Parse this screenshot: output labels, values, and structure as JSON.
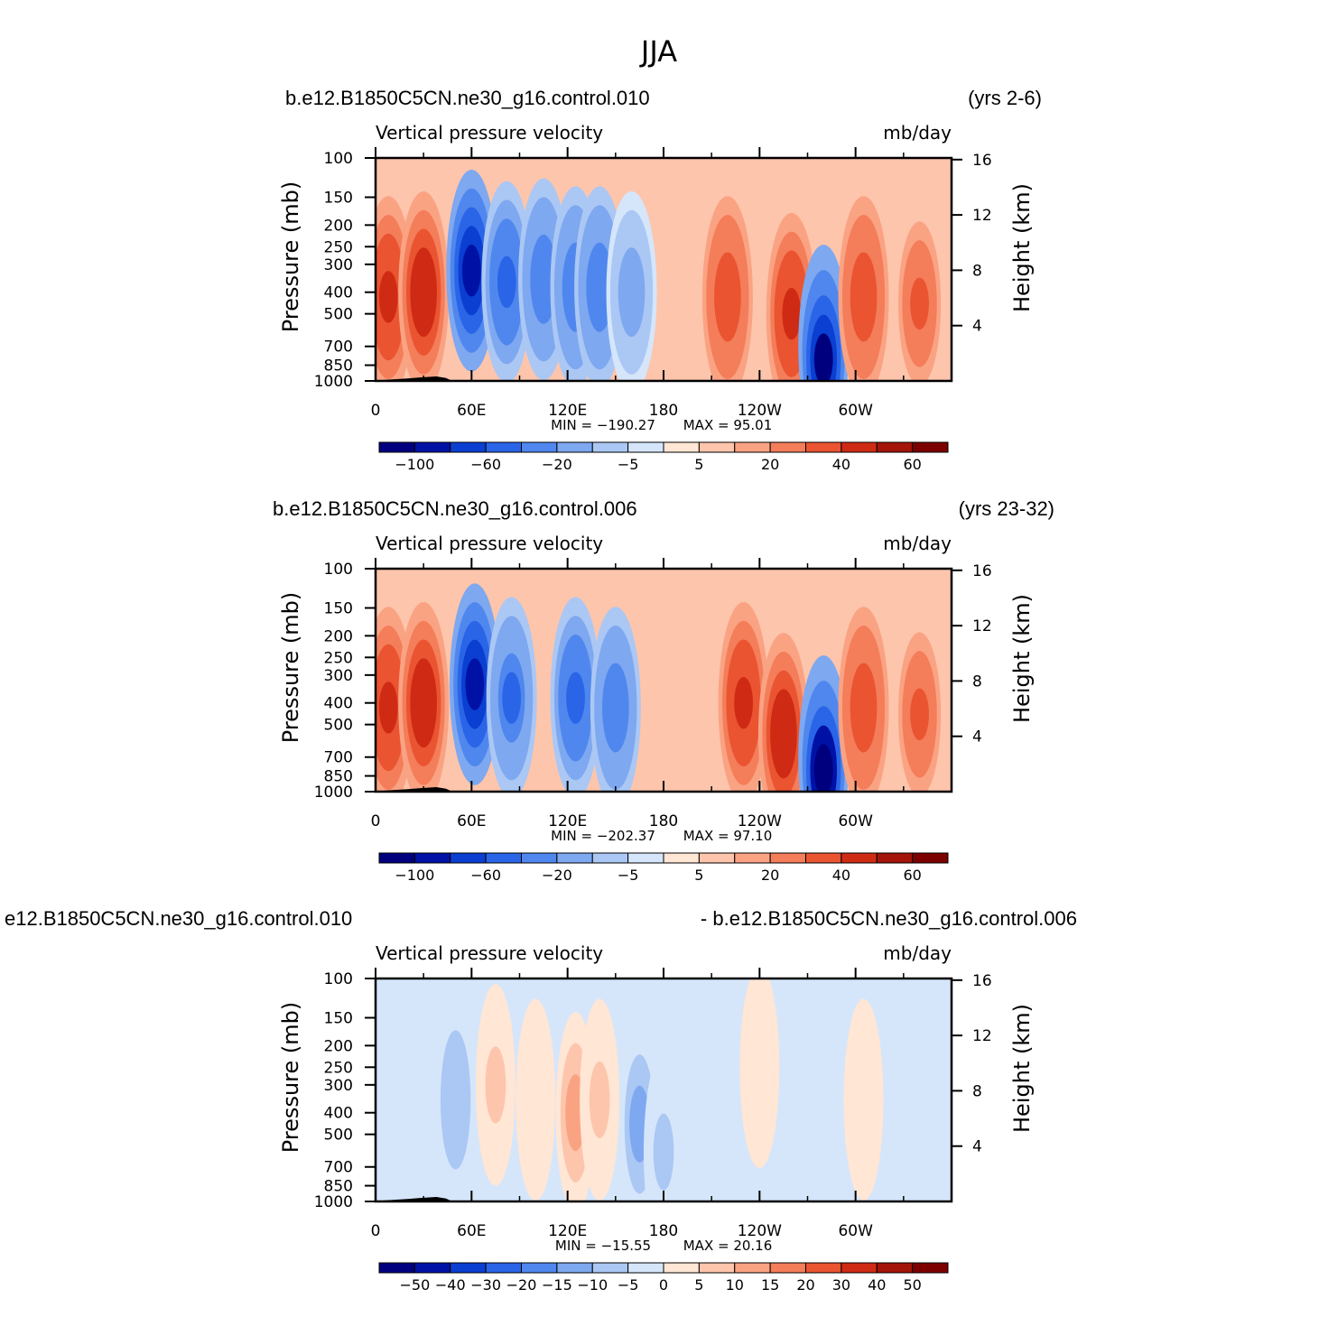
{
  "title": "JJA",
  "chart_data": [
    {
      "type": "heatmap",
      "case_left": "b.e12.B1850C5CN.ne30_g16.control.010",
      "case_right": "(yrs 2-6)",
      "subtitle_left": "Vertical pressure velocity",
      "subtitle_right": "mb/day",
      "ylabel": "Pressure (mb)",
      "y2label": "Height (km)",
      "x_ticks": [
        "0",
        "60E",
        "120E",
        "180",
        "120W",
        "60W"
      ],
      "y_ticks": [
        "100",
        "150",
        "200",
        "250",
        "300",
        "400",
        "500",
        "700",
        "850",
        "1000"
      ],
      "y2_ticks": [
        "16",
        "12",
        "8",
        "4"
      ],
      "xlim": [
        0,
        360
      ],
      "ylim": [
        1000,
        100
      ],
      "min_label": "MIN = −190.27",
      "max_label": "MAX = 95.01",
      "min": -190.27,
      "max": 95.01,
      "colorbar_labels": [
        "−100",
        "−60",
        "−20",
        "−5",
        "5",
        "20",
        "40",
        "60"
      ],
      "features": [
        {
          "lon": 8,
          "p": 420,
          "value": 35
        },
        {
          "lon": 30,
          "p": 400,
          "value": 40
        },
        {
          "lon": 60,
          "p": 320,
          "value": -110
        },
        {
          "lon": 82,
          "p": 360,
          "value": -70
        },
        {
          "lon": 105,
          "p": 350,
          "value": -50
        },
        {
          "lon": 125,
          "p": 380,
          "value": -55
        },
        {
          "lon": 140,
          "p": 380,
          "value": -50
        },
        {
          "lon": 160,
          "p": 400,
          "value": -30
        },
        {
          "lon": 220,
          "p": 420,
          "value": 30
        },
        {
          "lon": 260,
          "p": 500,
          "value": 35
        },
        {
          "lon": 280,
          "p": 800,
          "value": -120
        },
        {
          "lon": 305,
          "p": 420,
          "value": 30
        },
        {
          "lon": 340,
          "p": 450,
          "value": 25
        }
      ]
    },
    {
      "type": "heatmap",
      "case_left": "b.e12.B1850C5CN.ne30_g16.control.006",
      "case_right": "(yrs 23-32)",
      "subtitle_left": "Vertical pressure velocity",
      "subtitle_right": "mb/day",
      "ylabel": "Pressure (mb)",
      "y2label": "Height (km)",
      "x_ticks": [
        "0",
        "60E",
        "120E",
        "180",
        "120W",
        "60W"
      ],
      "y_ticks": [
        "100",
        "150",
        "200",
        "250",
        "300",
        "400",
        "500",
        "700",
        "850",
        "1000"
      ],
      "y2_ticks": [
        "16",
        "12",
        "8",
        "4"
      ],
      "xlim": [
        0,
        360
      ],
      "ylim": [
        1000,
        100
      ],
      "min_label": "MIN = −202.37",
      "max_label": "MAX = 97.10",
      "min": -202.37,
      "max": 97.1,
      "colorbar_labels": [
        "−100",
        "−60",
        "−20",
        "−5",
        "5",
        "20",
        "40",
        "60"
      ],
      "features": [
        {
          "lon": 8,
          "p": 420,
          "value": 35
        },
        {
          "lon": 30,
          "p": 400,
          "value": 40
        },
        {
          "lon": 62,
          "p": 330,
          "value": -110
        },
        {
          "lon": 85,
          "p": 380,
          "value": -60
        },
        {
          "lon": 125,
          "p": 380,
          "value": -70
        },
        {
          "lon": 150,
          "p": 420,
          "value": -50
        },
        {
          "lon": 230,
          "p": 400,
          "value": 35
        },
        {
          "lon": 255,
          "p": 550,
          "value": 40
        },
        {
          "lon": 280,
          "p": 800,
          "value": -130
        },
        {
          "lon": 305,
          "p": 420,
          "value": 30
        },
        {
          "lon": 340,
          "p": 450,
          "value": 25
        }
      ]
    },
    {
      "type": "heatmap",
      "case_left": "e12.B1850C5CN.ne30_g16.control.010",
      "case_right": "- b.e12.B1850C5CN.ne30_g16.control.006",
      "subtitle_left": "Vertical pressure velocity",
      "subtitle_right": "mb/day",
      "ylabel": "Pressure (mb)",
      "y2label": "Height (km)",
      "x_ticks": [
        "0",
        "60E",
        "120E",
        "180",
        "120W",
        "60W"
      ],
      "y_ticks": [
        "100",
        "150",
        "200",
        "250",
        "300",
        "400",
        "500",
        "700",
        "850",
        "1000"
      ],
      "y2_ticks": [
        "16",
        "12",
        "8",
        "4"
      ],
      "xlim": [
        0,
        360
      ],
      "ylim": [
        1000,
        100
      ],
      "min_label": "MIN = −15.55",
      "max_label": "MAX = 20.16",
      "min": -15.55,
      "max": 20.16,
      "colorbar_labels": [
        "−50",
        "−40",
        "−30",
        "−20",
        "−15",
        "−10",
        "−5",
        "0",
        "5",
        "10",
        "15",
        "20",
        "30",
        "40",
        "50"
      ],
      "features": [
        {
          "lon": 50,
          "p": 350,
          "value": -8
        },
        {
          "lon": 75,
          "p": 300,
          "value": 6
        },
        {
          "lon": 100,
          "p": 350,
          "value": 5
        },
        {
          "lon": 125,
          "p": 400,
          "value": 12
        },
        {
          "lon": 140,
          "p": 350,
          "value": 6
        },
        {
          "lon": 165,
          "p": 450,
          "value": -10
        },
        {
          "lon": 180,
          "p": 600,
          "value": -7
        },
        {
          "lon": 240,
          "p": 250,
          "value": 2
        },
        {
          "lon": 305,
          "p": 350,
          "value": 3
        }
      ]
    }
  ],
  "colors": {
    "levels_std": [
      "#00007f",
      "#0012a6",
      "#0a3fd1",
      "#2a65e8",
      "#4f87ee",
      "#7ea8f0",
      "#abc7f4",
      "#d5e6fb",
      "#ffe6d5",
      "#fdc5ac",
      "#faa383",
      "#f47d5a",
      "#ea5431",
      "#cf2b14",
      "#a51409",
      "#7d0001"
    ],
    "levels_diff": [
      "#00007f",
      "#0012a6",
      "#0a3fd1",
      "#2a65e8",
      "#4f87ee",
      "#7ea8f0",
      "#abc7f4",
      "#d5e6fb",
      "#ffe6d5",
      "#fdc5ac",
      "#faa383",
      "#f47d5a",
      "#ea5431",
      "#cf2b14",
      "#a51409",
      "#7d0001"
    ],
    "topography": "#000000"
  }
}
